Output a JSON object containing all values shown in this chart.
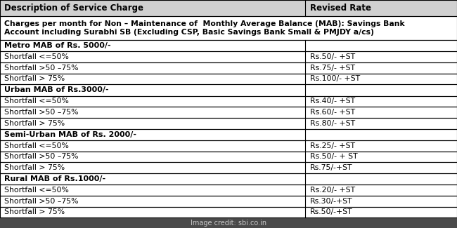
{
  "header": [
    "Description of Service Charge",
    "Revised Rate"
  ],
  "rows": [
    {
      "text": "Charges per month for Non – Maintenance of  Monthly Average Balance (MAB): Savings Bank\nAccount including Surabhi SB (Excluding CSP, Basic Savings Bank Small & PMJDY a/cs)",
      "rate": "",
      "type": "merged",
      "bold": true
    },
    {
      "text": "Metro MAB of Rs. 5000/-",
      "rate": "",
      "type": "section_header",
      "bold": true
    },
    {
      "text": "Shortfall <=50%",
      "rate": "Rs.50/- +ST",
      "type": "data",
      "bold": false
    },
    {
      "text": "Shortfall >50 –75%",
      "rate": "Rs.75/- +ST",
      "type": "data",
      "bold": false
    },
    {
      "text": "Shortfall > 75%",
      "rate": "Rs.100/- +ST",
      "type": "data",
      "bold": false
    },
    {
      "text": "Urban MAB of Rs.3000/-",
      "rate": "",
      "type": "section_header",
      "bold": true
    },
    {
      "text": "Shortfall <=50%",
      "rate": "Rs.40/- +ST",
      "type": "data",
      "bold": false
    },
    {
      "text": "Shortfall >50 –75%",
      "rate": "Rs.60/- +ST",
      "type": "data",
      "bold": false
    },
    {
      "text": "Shortfall > 75%",
      "rate": "Rs.80/- +ST",
      "type": "data",
      "bold": false
    },
    {
      "text": "Semi-Urban MAB of Rs. 2000/-",
      "rate": "",
      "type": "section_header",
      "bold": true
    },
    {
      "text": "Shortfall <=50%",
      "rate": "Rs.25/- +ST",
      "type": "data",
      "bold": false
    },
    {
      "text": "Shortfall >50 –75%",
      "rate": "Rs.50/- + ST",
      "type": "data",
      "bold": false
    },
    {
      "text": "Shortfall > 75%",
      "rate": "Rs.75/-+ST",
      "type": "data",
      "bold": false
    },
    {
      "text": "Rural MAB of Rs.1000/-",
      "rate": "",
      "type": "section_header",
      "bold": true
    },
    {
      "text": "Shortfall <=50%",
      "rate": "Rs.20/- +ST",
      "type": "data",
      "bold": false
    },
    {
      "text": "Shortfall >50 –75%",
      "rate": "Rs.30/-+ST",
      "type": "data",
      "bold": false
    },
    {
      "text": "Shortfall > 75%",
      "rate": "Rs.50/-+ST",
      "type": "data",
      "bold": false
    }
  ],
  "col_split": 0.668,
  "header_bg": "#d0d0d0",
  "border_color": "#000000",
  "text_color": "#000000",
  "footer_text": "Image credit: sbi.co.in",
  "footer_bg": "#4a4a4a",
  "footer_text_color": "#c8c8c8",
  "font_size_header": 8.5,
  "font_size_merged": 7.8,
  "font_size_data": 7.8,
  "font_size_section": 8.0,
  "font_size_footer": 7.0,
  "row_heights": {
    "header": 0.082,
    "merged": 0.118,
    "section": 0.058,
    "data": 0.055,
    "footer": 0.052
  }
}
